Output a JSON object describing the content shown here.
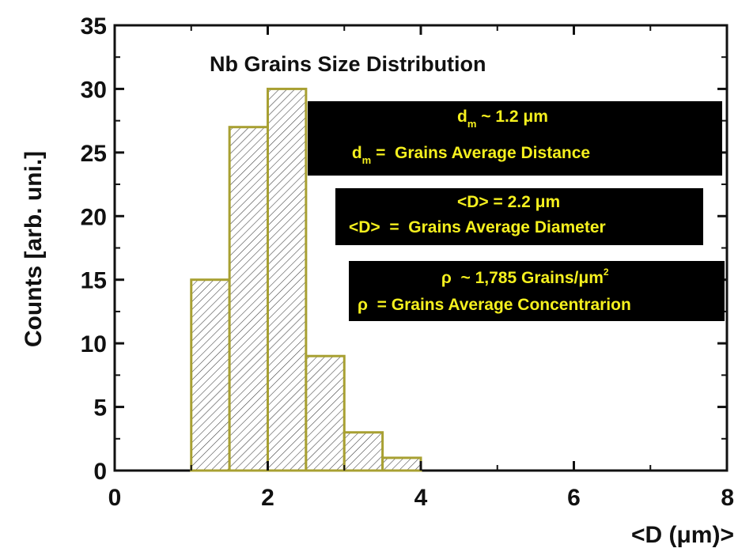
{
  "chart_data": {
    "type": "bar",
    "title": "Nb Grains Size Distribution",
    "xlabel": "<D (μm)>",
    "ylabel": "Counts [arb. uni.]",
    "xlim": [
      0,
      8
    ],
    "ylim": [
      0,
      35
    ],
    "xticks": [
      0,
      2,
      4,
      6,
      8
    ],
    "yticks": [
      0,
      5,
      10,
      15,
      20,
      25,
      30,
      35
    ],
    "bin_width": 0.5,
    "bins": [
      {
        "x_start": 1.0,
        "x_end": 1.5,
        "value": 15
      },
      {
        "x_start": 1.5,
        "x_end": 2.0,
        "value": 27
      },
      {
        "x_start": 2.0,
        "x_end": 2.5,
        "value": 30
      },
      {
        "x_start": 2.5,
        "x_end": 3.0,
        "value": 9
      },
      {
        "x_start": 3.0,
        "x_end": 3.5,
        "value": 3
      },
      {
        "x_start": 3.5,
        "x_end": 4.0,
        "value": 1
      }
    ],
    "bar_style": {
      "edge_color": "#a8a032",
      "hatch": "diagonal",
      "hatch_color": "#3a3a3a"
    },
    "grid": false,
    "annotations": [
      {
        "name": "distance",
        "line1": {
          "prefix": "d",
          "sub": "m",
          "text": " ~ 1.2 μm"
        },
        "line2": {
          "prefix": "d",
          "sub": "m",
          "text": " =  Grains Average Distance"
        }
      },
      {
        "name": "diameter",
        "line1": {
          "text": "<D> = 2.2 μm"
        },
        "line2": {
          "text": "<D>  =  Grains Average Diameter"
        }
      },
      {
        "name": "concentration",
        "line1": {
          "prefix": "ρ",
          "text": "  ~ 1,785 Grains/μm",
          "sup": "2"
        },
        "line2": {
          "text": "ρ  = Grains Average Concentrarion"
        }
      }
    ],
    "annotation_style": {
      "background": "#000000",
      "text_color": "#f5f01e"
    }
  }
}
